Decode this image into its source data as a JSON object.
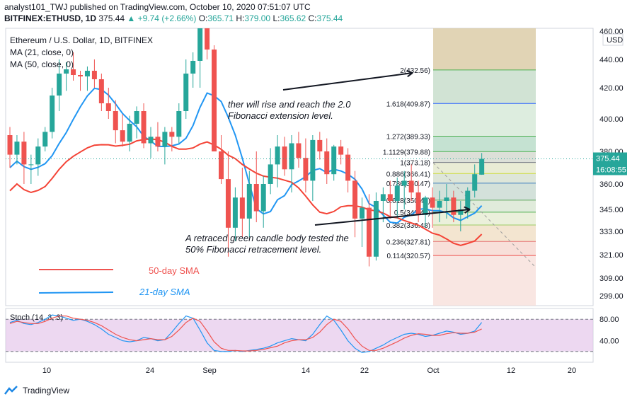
{
  "header": {
    "published": "analyst101_TWJ published on TradingView.com, October 10, 2020 07:51:07 UTC",
    "symbol": "BITFINEX:ETHUSD, 1D",
    "last": "375.44",
    "change": "▲ +9.74 (+2.66%)",
    "o_label": "O:",
    "o": "365.71",
    "h_label": "H:",
    "h": "379.00",
    "l_label": "L:",
    "l": "365.62",
    "c_label": "C:",
    "c": "375.44"
  },
  "legend": {
    "title": "Ethereum / U.S. Dollar, 1D, BITFINEX",
    "ma21": "MA (21, close, 0)",
    "ma50": "MA (50, close, 0)"
  },
  "footer": {
    "brand": "TradingView"
  },
  "colors": {
    "up": "#26a69a",
    "down": "#ef5350",
    "ma21": "#2196f3",
    "ma50": "#f44336"
  },
  "chart_data": [
    {
      "type": "candlestick",
      "currency": "USD",
      "ylim": [
        289,
        462
      ],
      "y_ticks": [
        299,
        309,
        321,
        333,
        345,
        360,
        380,
        400,
        420,
        440,
        460
      ],
      "x_ticks": [
        "10",
        "24",
        "Sep",
        "14",
        "22",
        "Oct",
        "12",
        "20"
      ],
      "last_price": "375.44",
      "countdown": "16:08:55",
      "fib_levels": [
        {
          "label": "2(432.56)",
          "value": 432.56
        },
        {
          "label": "1.618(409.87)",
          "value": 409.87
        },
        {
          "label": "1.272(389.33)",
          "value": 389.33
        },
        {
          "label": "1.1129(379.88)",
          "value": 379.88
        },
        {
          "label": "1(373.18)",
          "value": 373.18
        },
        {
          "label": "0.886(366.41)",
          "value": 366.41
        },
        {
          "label": "0.786(360.47)",
          "value": 360.47
        },
        {
          "label": "0.618(350.49)",
          "value": 350.49
        },
        {
          "label": "0.5(343.49)",
          "value": 343.49
        },
        {
          "label": "0.382(336.48)",
          "value": 336.48
        },
        {
          "label": "0.236(327.81)",
          "value": 327.81
        },
        {
          "label": "0.114(320.57)",
          "value": 320.57
        }
      ],
      "annotations": [
        {
          "text": "ther will rise and reach the 2.0 Fibonacci extension level."
        },
        {
          "text": "A retraced green candle body tested the 50% Fibonacci retracement level."
        },
        {
          "text": "50-day SMA"
        },
        {
          "text": "21-day SMA"
        }
      ],
      "candles": [
        [
          390,
          395,
          370,
          378
        ],
        [
          378,
          390,
          372,
          386
        ],
        [
          386,
          392,
          360,
          372
        ],
        [
          372,
          378,
          360,
          372
        ],
        [
          372,
          388,
          365,
          383
        ],
        [
          383,
          395,
          380,
          392
        ],
        [
          392,
          420,
          388,
          415
        ],
        [
          415,
          440,
          405,
          430
        ],
        [
          430,
          438,
          418,
          433
        ],
        [
          433,
          445,
          425,
          429
        ],
        [
          429,
          432,
          418,
          428
        ],
        [
          428,
          435,
          418,
          432
        ],
        [
          432,
          440,
          420,
          426
        ],
        [
          426,
          430,
          405,
          410
        ],
        [
          410,
          420,
          400,
          405
        ],
        [
          405,
          412,
          385,
          393
        ],
        [
          393,
          403,
          383,
          386
        ],
        [
          386,
          402,
          380,
          397
        ],
        [
          397,
          408,
          388,
          405
        ],
        [
          405,
          410,
          382,
          385
        ],
        [
          385,
          395,
          376,
          389
        ],
        [
          389,
          398,
          380,
          383
        ],
        [
          383,
          395,
          372,
          392
        ],
        [
          392,
          395,
          380,
          389
        ],
        [
          389,
          410,
          385,
          405
        ],
        [
          405,
          440,
          400,
          430
        ],
        [
          430,
          445,
          420,
          439
        ],
        [
          439,
          480,
          420,
          470
        ],
        [
          470,
          478,
          440,
          447
        ],
        [
          447,
          450,
          380,
          380
        ],
        [
          380,
          390,
          360,
          363
        ],
        [
          363,
          380,
          320,
          335
        ],
        [
          335,
          358,
          328,
          352
        ],
        [
          352,
          370,
          330,
          340
        ],
        [
          340,
          368,
          330,
          360
        ],
        [
          360,
          380,
          338,
          344
        ],
        [
          344,
          365,
          335,
          360
        ],
        [
          360,
          382,
          354,
          372
        ],
        [
          372,
          390,
          358,
          383
        ],
        [
          383,
          389,
          365,
          369
        ],
        [
          369,
          390,
          355,
          385
        ],
        [
          385,
          392,
          370,
          376
        ],
        [
          376,
          388,
          355,
          362
        ],
        [
          362,
          390,
          350,
          387
        ],
        [
          387,
          392,
          375,
          380
        ],
        [
          380,
          388,
          360,
          366
        ],
        [
          366,
          384,
          362,
          383
        ],
        [
          383,
          387,
          372,
          378
        ],
        [
          378,
          382,
          355,
          362
        ],
        [
          362,
          368,
          330,
          340
        ],
        [
          340,
          352,
          325,
          346
        ],
        [
          346,
          354,
          315,
          320
        ],
        [
          320,
          355,
          318,
          350
        ],
        [
          350,
          358,
          338,
          354
        ],
        [
          354,
          362,
          340,
          350
        ],
        [
          350,
          364,
          340,
          359
        ],
        [
          359,
          368,
          345,
          362
        ],
        [
          362,
          372,
          350,
          355
        ],
        [
          355,
          362,
          338,
          342
        ],
        [
          342,
          353,
          335,
          352
        ],
        [
          352,
          358,
          335,
          346
        ],
        [
          346,
          356,
          338,
          350
        ],
        [
          350,
          360,
          340,
          352
        ],
        [
          352,
          356,
          338,
          342
        ],
        [
          342,
          350,
          333,
          345
        ],
        [
          345,
          358,
          340,
          356
        ],
        [
          356,
          372,
          352,
          366
        ],
        [
          365.71,
          379,
          365.62,
          375.44
        ]
      ]
    },
    {
      "type": "line",
      "title": "Stoch (14, 3, 3)",
      "ylim": [
        0,
        100
      ],
      "y_ticks": [
        40,
        80
      ],
      "bands": [
        20,
        80
      ],
      "series": [
        {
          "color": "#2196f3",
          "values": [
            74,
            78,
            72,
            70,
            74,
            80,
            88,
            86,
            82,
            78,
            80,
            76,
            70,
            62,
            52,
            46,
            40,
            38,
            40,
            46,
            44,
            40,
            42,
            56,
            72,
            86,
            82,
            60,
            36,
            22,
            20,
            20,
            22,
            20,
            22,
            24,
            26,
            30,
            36,
            40,
            44,
            42,
            40,
            52,
            70,
            86,
            78,
            60,
            40,
            26,
            18,
            20,
            26,
            32,
            40,
            46,
            52,
            54,
            52,
            48,
            50,
            54,
            58,
            56,
            52,
            54,
            58,
            74
          ]
        },
        {
          "color": "#ef5350",
          "values": [
            72,
            76,
            74,
            72,
            72,
            76,
            82,
            86,
            86,
            82,
            80,
            78,
            74,
            68,
            60,
            52,
            46,
            42,
            40,
            42,
            44,
            42,
            42,
            48,
            60,
            74,
            82,
            76,
            58,
            38,
            26,
            22,
            22,
            21,
            21,
            22,
            24,
            27,
            30,
            36,
            40,
            42,
            42,
            46,
            56,
            70,
            80,
            76,
            62,
            44,
            30,
            22,
            22,
            26,
            32,
            38,
            45,
            50,
            53,
            52,
            50,
            50,
            53,
            55,
            54,
            54,
            56,
            62
          ]
        }
      ]
    }
  ]
}
